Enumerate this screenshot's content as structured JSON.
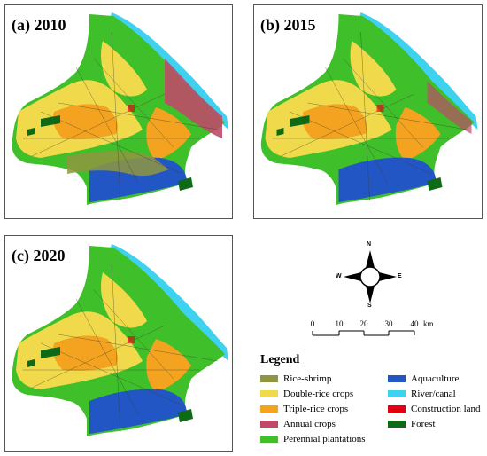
{
  "panels": [
    {
      "label": "(a) 2010"
    },
    {
      "label": "(b) 2015"
    },
    {
      "label": "(c) 2020"
    }
  ],
  "compass": {
    "n": "N",
    "s": "S",
    "w": "W",
    "e": "E"
  },
  "scalebar": {
    "ticks": [
      "0",
      "10",
      "20",
      "30",
      "40"
    ],
    "unit": "km"
  },
  "legend": {
    "title": "Legend",
    "items": [
      {
        "label": "Rice-shrimp",
        "color": "#8f9540"
      },
      {
        "label": "Double-rice crops",
        "color": "#f0da4c"
      },
      {
        "label": "Triple-rice crops",
        "color": "#f3a31f"
      },
      {
        "label": "Annual crops",
        "color": "#bd4b68"
      },
      {
        "label": "Perennial plantations",
        "color": "#3fc02a"
      },
      {
        "label": "Aquaculture",
        "color": "#2256c4"
      },
      {
        "label": "River/canal",
        "color": "#3fd2f0"
      },
      {
        "label": "Construction land",
        "color": "#e3000f"
      },
      {
        "label": "Forest",
        "color": "#0f6a16"
      }
    ]
  }
}
